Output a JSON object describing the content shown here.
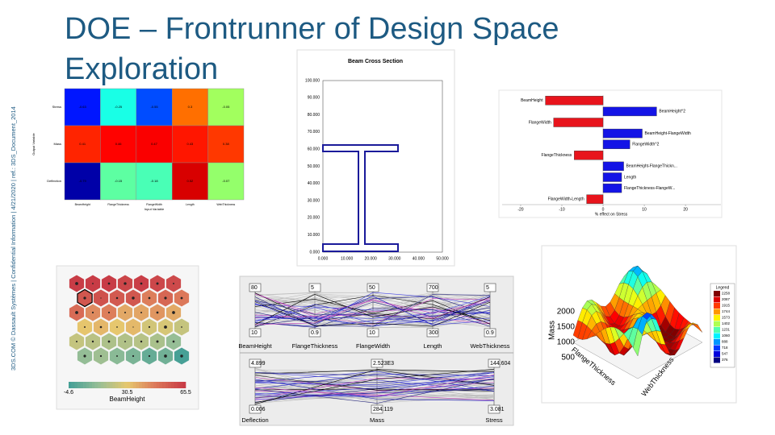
{
  "title": "DOE – Frontrunner of Design Space Exploration",
  "side_note": "3DS.COM © Dassault Systèmes | Confidential Information | 4/21/2020 | ref.: 3DS_Document_2014",
  "heatmap": {
    "y_label": "Output Variable",
    "x_label": "Input Variable",
    "rows": [
      "Stress",
      "Mass",
      "Deflection"
    ],
    "columns": [
      "BeamHeight",
      "FlangeThickness",
      "FlangeWidth",
      "Length",
      "WebThickness"
    ],
    "cells": [
      [
        -0.63,
        -0.25,
        -0.55,
        0.3,
        -0.05
      ],
      [
        0.41,
        0.46,
        0.47,
        0.43,
        0.38
      ],
      [
        -0.79,
        -0.15,
        -0.18,
        0.52,
        -0.07
      ]
    ]
  },
  "beam_section": {
    "title": "Beam Cross Section",
    "yticks": [
      "0.000",
      "10.000",
      "20.000",
      "30.000",
      "40.000",
      "50.000",
      "60.000",
      "70.000",
      "80.000",
      "90.000",
      "100.000"
    ],
    "xticks": [
      "0.000",
      "10.000",
      "20.000",
      "30.000",
      "40.000",
      "50.000"
    ]
  },
  "effects": {
    "type": "bar",
    "x_label": "% effect on Stress",
    "categories": [
      "BeamHeight",
      "BeamHeight^2",
      "FlangeWidth",
      "BeamHeight-FlangeWidth",
      "FlangeWidth^2",
      "FlangeThickness",
      "BeamHeight-FlangeThickn...",
      "Length",
      "FlangeThickness-FlangeW...",
      "FlangeWidth-Length"
    ],
    "values": [
      -14,
      13,
      -12,
      9.5,
      6.5,
      -7,
      5,
      4.5,
      4.5,
      -4
    ],
    "negative_color": "#e8141c",
    "positive_color": "#1414e6",
    "xlim": [
      -24.5,
      28.6
    ],
    "xticks": [
      -20,
      -10,
      0,
      10,
      20
    ]
  },
  "som": {
    "color_label": "BeamHeight",
    "scale_ticks": [
      -4.6,
      30.5,
      65.5
    ]
  },
  "parallel": {
    "inputs": [
      {
        "name": "BeamHeight",
        "max": "80",
        "min": "10"
      },
      {
        "name": "FlangeThickness",
        "max": "5",
        "min": "0.9"
      },
      {
        "name": "FlangeWidth",
        "max": "50",
        "min": "10"
      },
      {
        "name": "Length",
        "max": "700",
        "min": "300"
      },
      {
        "name": "WebThickness",
        "max": "5",
        "min": "0.9"
      }
    ],
    "outputs": [
      {
        "name": "Deflection",
        "max": "4.899",
        "min": "0.006"
      },
      {
        "name": "Mass",
        "max": "2.523E3",
        "min": "284.119"
      },
      {
        "name": "Stress",
        "max": "144.604",
        "min": "3.081"
      }
    ]
  },
  "surface": {
    "x_label": "WebThickness",
    "y_label": "FlangeThickness",
    "z_label": "Mass",
    "z_ticks": [
      "500",
      "1000",
      "1500",
      "2000"
    ],
    "legend_title": "Legend",
    "legend": [
      2258,
      2087,
      1915,
      1744,
      1573,
      1402,
      1231,
      1060,
      888,
      718,
      547,
      376
    ]
  }
}
